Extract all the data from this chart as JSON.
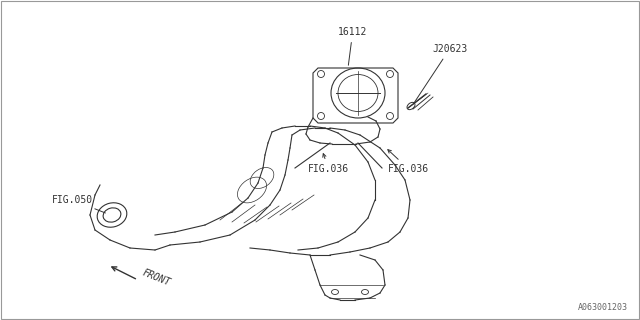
{
  "bg_color": "#ffffff",
  "border_color": "#aaaaaa",
  "line_color": "#333333",
  "text_color": "#333333",
  "part_number_main": "16112",
  "part_label_j": "J20623",
  "fig_050": "FIG.050",
  "fig_036a": "FIG.036",
  "fig_036b": "FIG.036",
  "front_label": "FRONT",
  "diagram_id": "A063001203",
  "fig_width": 6.4,
  "fig_height": 3.2,
  "dpi": 100
}
